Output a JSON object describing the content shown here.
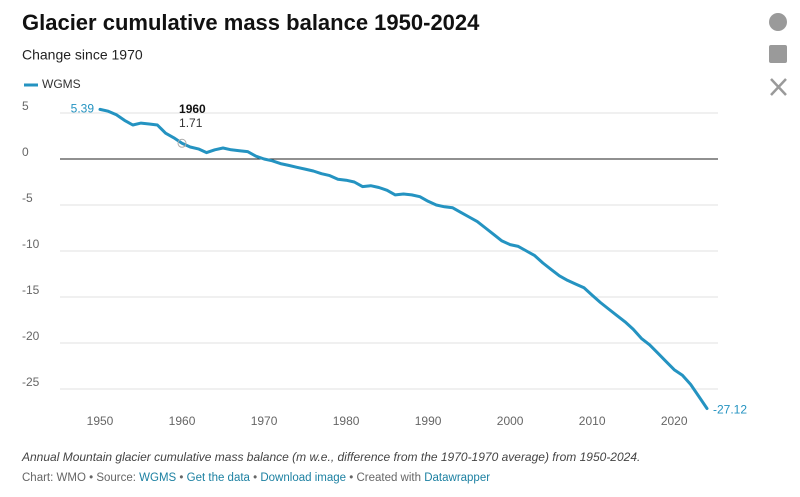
{
  "chart_data": {
    "type": "line",
    "title": "Glacier cumulative mass balance 1950-2024",
    "subtitle": "Change since 1970",
    "x": [
      1950,
      1951,
      1952,
      1953,
      1954,
      1955,
      1956,
      1957,
      1958,
      1959,
      1960,
      1961,
      1962,
      1963,
      1964,
      1965,
      1966,
      1967,
      1968,
      1969,
      1970,
      1971,
      1972,
      1973,
      1974,
      1975,
      1976,
      1977,
      1978,
      1979,
      1980,
      1981,
      1982,
      1983,
      1984,
      1985,
      1986,
      1987,
      1988,
      1989,
      1990,
      1991,
      1992,
      1993,
      1994,
      1995,
      1996,
      1997,
      1998,
      1999,
      2000,
      2001,
      2002,
      2003,
      2004,
      2005,
      2006,
      2007,
      2008,
      2009,
      2010,
      2011,
      2012,
      2013,
      2014,
      2015,
      2016,
      2017,
      2018,
      2019,
      2020,
      2021,
      2022,
      2023,
      2024
    ],
    "series": [
      {
        "name": "WGMS",
        "color": "#2493c1",
        "values": [
          5.39,
          5.2,
          4.8,
          4.2,
          3.7,
          3.9,
          3.8,
          3.7,
          2.8,
          2.3,
          1.71,
          1.3,
          1.1,
          0.7,
          1.0,
          1.2,
          1.0,
          0.9,
          0.8,
          0.3,
          0,
          -0.2,
          -0.5,
          -0.7,
          -0.9,
          -1.1,
          -1.3,
          -1.6,
          -1.8,
          -2.2,
          -2.3,
          -2.5,
          -3.0,
          -2.9,
          -3.1,
          -3.4,
          -3.9,
          -3.8,
          -3.9,
          -4.1,
          -4.6,
          -5.0,
          -5.2,
          -5.3,
          -5.8,
          -6.3,
          -6.8,
          -7.5,
          -8.2,
          -8.9,
          -9.3,
          -9.5,
          -10.0,
          -10.5,
          -11.3,
          -12.0,
          -12.7,
          -13.2,
          -13.6,
          -14.0,
          -14.8,
          -15.6,
          -16.3,
          -17.0,
          -17.7,
          -18.5,
          -19.5,
          -20.2,
          -21.1,
          -22.0,
          -22.9,
          -23.5,
          -24.5,
          -25.8,
          -27.12
        ]
      }
    ],
    "xlim": [
      1950,
      2024
    ],
    "xticks": [
      1950,
      1960,
      1970,
      1980,
      1990,
      2000,
      2010,
      2020
    ],
    "ylim": [
      -27.5,
      5.5
    ],
    "yticks": [
      5,
      0,
      -5,
      -10,
      -15,
      -20,
      -25
    ],
    "grid": true,
    "caption": "Annual Mountain glacier cumulative mass balance (m w.e., difference from the 1970-1970 average) from 1950-2024.",
    "footer": {
      "chart": "Chart: WMO",
      "source_label": "Source:",
      "source": "WGMS",
      "get_data": "Get the data",
      "download": "Download image",
      "created": "Created with",
      "tool": "Datawrapper"
    }
  }
}
